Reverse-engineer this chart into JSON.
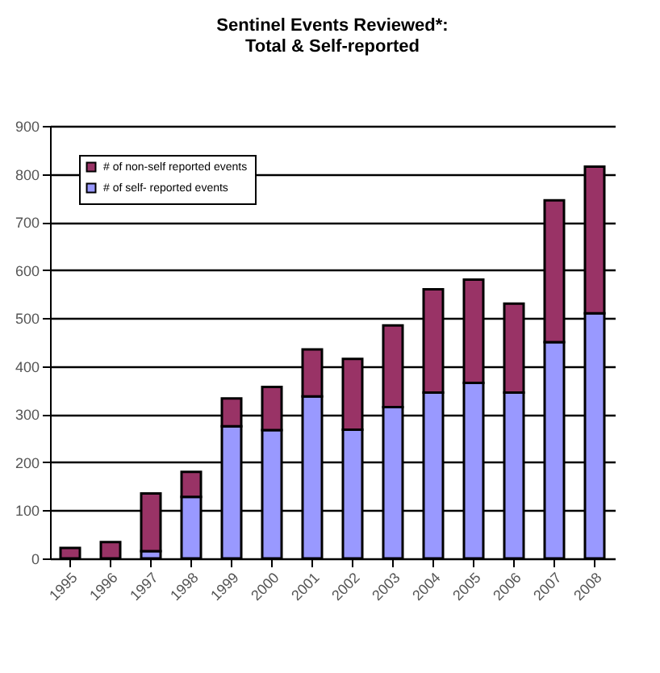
{
  "chart_data": {
    "type": "bar",
    "title": "Sentinel Events Reviewed*:",
    "subtitle": "Total & Self-reported",
    "categories": [
      "1995",
      "1996",
      "1997",
      "1998",
      "1999",
      "2000",
      "2001",
      "2002",
      "2003",
      "2004",
      "2005",
      "2006",
      "2007",
      "2008"
    ],
    "stacked": true,
    "series": [
      {
        "name": "# of self- reported events",
        "color": "#9999ff",
        "values": [
          0,
          0,
          15,
          128,
          275,
          267,
          337,
          268,
          315,
          345,
          365,
          345,
          450,
          510
        ]
      },
      {
        "name": "# of non-self reported events",
        "color": "#993366",
        "values": [
          22,
          34,
          120,
          52,
          58,
          90,
          98,
          147,
          170,
          215,
          215,
          185,
          295,
          305
        ]
      }
    ],
    "ylim": [
      0,
      900
    ],
    "yticks": [
      0,
      100,
      200,
      300,
      400,
      500,
      600,
      700,
      800,
      900
    ],
    "grid": "y",
    "legend": "top left"
  }
}
